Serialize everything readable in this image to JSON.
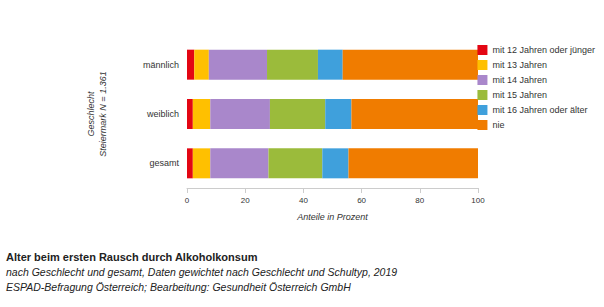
{
  "chart_data": {
    "type": "bar",
    "orientation": "horizontal",
    "stacked": true,
    "title": "Alter beim ersten Rausch durch Alkoholkonsum",
    "subtitle": "nach Geschlecht und gesamt, Daten gewichtet nach Geschlecht und Schultyp, 2019",
    "annotations": [
      "ESPAD-Befragung Österreich; Bearbeitung: Gesundheit Österreich GmbH"
    ],
    "xlabel": "Anteile in Prozent",
    "ylabel": "Geschlecht\nSteiermark N = 1.361",
    "categories": [
      "männlich",
      "weiblich",
      "gesamt"
    ],
    "series": [
      {
        "name": "mit 12 Jahren oder jünger",
        "color": "#e30613",
        "values": [
          2.5,
          2,
          2
        ]
      },
      {
        "name": "mit 13 Jahren",
        "color": "#ffc000",
        "values": [
          5,
          6,
          6
        ]
      },
      {
        "name": "mit 14 Jahren",
        "color": "#a987cb",
        "values": [
          20,
          20.5,
          20
        ]
      },
      {
        "name": "mit 15 Jahren",
        "color": "#9bbb3b",
        "values": [
          17.5,
          19,
          18.5
        ]
      },
      {
        "name": "mit 16 Jahren oder älter",
        "color": "#3fa0dc",
        "values": [
          8.5,
          9,
          9
        ]
      },
      {
        "name": "nie",
        "color": "#f07c00",
        "values": [
          46.5,
          43.5,
          44.5
        ]
      }
    ],
    "xlim": [
      0,
      100
    ],
    "xticks": [
      0,
      20,
      40,
      60,
      80,
      100
    ],
    "grid": false,
    "legend": "right"
  }
}
